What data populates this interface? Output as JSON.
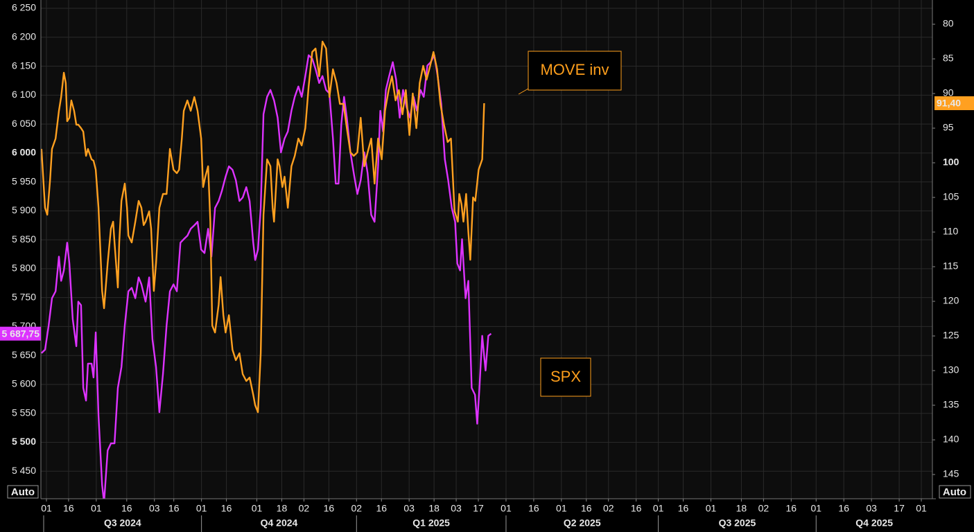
{
  "chart_data": {
    "type": "line",
    "xlim": [
      -1,
      321
    ],
    "xticks": [
      {
        "value": 1,
        "label": "01"
      },
      {
        "value": 9,
        "label": "16"
      },
      {
        "value": 19,
        "label": "01"
      },
      {
        "value": 30,
        "label": "16"
      },
      {
        "value": 40,
        "label": "03"
      },
      {
        "value": 47,
        "label": "16"
      },
      {
        "value": 57,
        "label": "01"
      },
      {
        "value": 66,
        "label": "16"
      },
      {
        "value": 77,
        "label": "01"
      },
      {
        "value": 86,
        "label": "18"
      },
      {
        "value": 94,
        "label": "02"
      },
      {
        "value": 103,
        "label": "16"
      },
      {
        "value": 113,
        "label": "02"
      },
      {
        "value": 122,
        "label": "16"
      },
      {
        "value": 132,
        "label": "03"
      },
      {
        "value": 141,
        "label": "18"
      },
      {
        "value": 149,
        "label": "03"
      },
      {
        "value": 157,
        "label": "17"
      },
      {
        "value": 167,
        "label": "01"
      },
      {
        "value": 177,
        "label": "16"
      },
      {
        "value": 187,
        "label": "01"
      },
      {
        "value": 196,
        "label": "16"
      },
      {
        "value": 204,
        "label": "02"
      },
      {
        "value": 214,
        "label": "16"
      },
      {
        "value": 222,
        "label": "01"
      },
      {
        "value": 231,
        "label": "16"
      },
      {
        "value": 241,
        "label": "01"
      },
      {
        "value": 252,
        "label": "18"
      },
      {
        "value": 260,
        "label": "02"
      },
      {
        "value": 270,
        "label": "16"
      },
      {
        "value": 279,
        "label": "01"
      },
      {
        "value": 289,
        "label": "16"
      },
      {
        "value": 299,
        "label": "03"
      },
      {
        "value": 309,
        "label": "17"
      },
      {
        "value": 317,
        "label": "01"
      }
    ],
    "quarters": [
      {
        "label": "Q3 2024",
        "start": 0
      },
      {
        "label": "Q4 2024",
        "start": 57
      },
      {
        "label": "Q1 2025",
        "start": 113
      },
      {
        "label": "Q2 2025",
        "start": 167
      },
      {
        "label": "Q3 2025",
        "start": 222
      },
      {
        "label": "Q4 2025",
        "start": 279
      }
    ],
    "ylim": [
      5402.4,
      6264.4
    ],
    "yticks": [
      {
        "value": 6250,
        "label": "6 250"
      },
      {
        "value": 6200,
        "label": "6 200"
      },
      {
        "value": 6150,
        "label": "6 150"
      },
      {
        "value": 6100,
        "label": "6 100"
      },
      {
        "value": 6050,
        "label": "6 050"
      },
      {
        "value": 6000,
        "label": "6 000",
        "bold": true
      },
      {
        "value": 5950,
        "label": "5 950"
      },
      {
        "value": 5900,
        "label": "5 900"
      },
      {
        "value": 5850,
        "label": "5 850"
      },
      {
        "value": 5800,
        "label": "5 800"
      },
      {
        "value": 5750,
        "label": "5 750"
      },
      {
        "value": 5700,
        "label": "5 700"
      },
      {
        "value": 5650,
        "label": "5 650"
      },
      {
        "value": 5600,
        "label": "5 600"
      },
      {
        "value": 5550,
        "label": "5 550"
      },
      {
        "value": 5500,
        "label": "5 500",
        "bold": true
      },
      {
        "value": 5450,
        "label": "5 450"
      }
    ],
    "y2lim": [
      76.5,
      148.5
    ],
    "y2_inverted": true,
    "y2ticks": [
      80,
      85,
      90,
      95,
      {
        "value": 100,
        "label": "100",
        "bold": true
      },
      105,
      110,
      115,
      120,
      125,
      130,
      135,
      140,
      145
    ],
    "grid": true,
    "series": [
      {
        "name": "SPX",
        "color": "#dd33ff",
        "axis": "y",
        "last_value_label": {
          "value": 5687.75,
          "label": "5 687,75"
        },
        "x": [
          -0.8,
          0.5,
          1.8,
          3.0,
          4.3,
          5.5,
          6.3,
          7.3,
          8.5,
          9.3,
          10.5,
          11.8,
          12.5,
          13.5,
          14.3,
          15.3,
          16.0,
          17.3,
          18.0,
          18.8,
          19.8,
          21.1,
          21.8,
          23.1,
          24.3,
          25.6,
          26.8,
          28.1,
          29.3,
          30.6,
          31.8,
          33.1,
          34.3,
          35.3,
          36.8,
          38.1,
          39.3,
          40.6,
          41.8,
          43.1,
          44.4,
          45.6,
          46.9,
          48.1,
          49.4,
          50.6,
          51.9,
          53.1,
          54.4,
          55.6,
          56.9,
          58.1,
          59.4,
          60.6,
          61.9,
          63.2,
          64.4,
          65.7,
          66.9,
          68.2,
          69.4,
          70.7,
          71.9,
          73.2,
          74.4,
          75.7,
          76.4,
          77.4,
          78.4,
          79.4,
          80.7,
          81.9,
          83.2,
          84.5,
          85.7,
          87.0,
          88.2,
          89.5,
          90.7,
          92.0,
          93.2,
          94.5,
          95.7,
          97.0,
          98.2,
          99.5,
          100.7,
          102.0,
          103.2,
          104.5,
          105.5,
          106.5,
          107.5,
          108.5,
          109.5,
          110.8,
          112.0,
          113.3,
          114.5,
          115.8,
          117.0,
          118.3,
          119.5,
          120.8,
          121.6,
          122.6,
          123.6,
          124.8,
          126.1,
          127.3,
          128.6,
          129.8,
          131.1,
          132.3,
          133.6,
          134.8,
          136.1,
          137.3,
          138.6,
          139.8,
          141.1,
          142.3,
          143.6,
          144.9,
          146.1,
          147.4,
          148.6,
          149.4,
          150.4,
          151.1,
          152.4,
          153.4,
          154.6,
          155.8,
          156.6,
          157.4,
          158.4,
          159.6,
          160.6,
          161.6
        ],
        "values": [
          5654,
          5660,
          5702,
          5749,
          5761,
          5821,
          5779,
          5797,
          5845,
          5809,
          5713,
          5666,
          5743,
          5737,
          5594,
          5572,
          5636,
          5636,
          5612,
          5690,
          5546,
          5426,
          5396,
          5486,
          5498,
          5498,
          5594,
          5630,
          5702,
          5761,
          5767,
          5749,
          5785,
          5773,
          5743,
          5785,
          5678,
          5630,
          5552,
          5618,
          5702,
          5761,
          5773,
          5761,
          5845,
          5851,
          5857,
          5869,
          5875,
          5881,
          5833,
          5827,
          5869,
          5821,
          5905,
          5917,
          5935,
          5959,
          5977,
          5971,
          5953,
          5917,
          5923,
          5941,
          5917,
          5845,
          5815,
          5833,
          5905,
          6067,
          6097,
          6109,
          6091,
          6061,
          6001,
          6025,
          6037,
          6073,
          6097,
          6115,
          6097,
          6133,
          6169,
          6163,
          6145,
          6121,
          6133,
          6109,
          6103,
          6025,
          5947,
          5947,
          6049,
          6097,
          6061,
          6001,
          5965,
          5929,
          5953,
          6001,
          5965,
          5893,
          5881,
          5977,
          6073,
          6037,
          6109,
          6133,
          6157,
          6127,
          6061,
          6109,
          6079,
          6061,
          6097,
          6073,
          6109,
          6097,
          6151,
          6157,
          6169,
          6133,
          6085,
          5989,
          5953,
          5905,
          5881,
          5809,
          5797,
          5851,
          5749,
          5779,
          5594,
          5582,
          5532,
          5594,
          5684,
          5624,
          5684,
          5687.75
        ]
      },
      {
        "name": "MOVE inv",
        "color": "#ffa020",
        "axis": "y2",
        "last_value_label": {
          "value": 91.4,
          "label": "91,40"
        },
        "x": [
          -0.8,
          0.5,
          1.3,
          2.3,
          3.0,
          4.3,
          5.5,
          6.3,
          7.3,
          8.0,
          8.5,
          9.3,
          10.0,
          11.0,
          11.8,
          12.5,
          13.5,
          14.3,
          15.3,
          16.0,
          17.3,
          18.0,
          18.8,
          19.8,
          21.1,
          21.8,
          23.1,
          24.3,
          25.1,
          25.6,
          26.8,
          27.3,
          28.1,
          29.3,
          30.1,
          30.6,
          31.8,
          33.1,
          34.3,
          35.3,
          36.1,
          36.8,
          38.1,
          38.8,
          39.8,
          40.6,
          41.8,
          43.1,
          44.4,
          45.6,
          46.9,
          48.1,
          48.9,
          49.9,
          50.6,
          51.9,
          53.1,
          54.4,
          55.6,
          56.9,
          57.6,
          58.4,
          59.4,
          60.2,
          60.9,
          61.9,
          63.2,
          63.9,
          64.9,
          65.7,
          66.9,
          68.2,
          69.4,
          70.7,
          71.9,
          73.2,
          74.4,
          75.7,
          76.4,
          77.4,
          78.4,
          79.4,
          80.7,
          81.9,
          82.7,
          83.2,
          84.5,
          85.2,
          86.2,
          87.0,
          88.2,
          89.5,
          90.7,
          92.0,
          93.2,
          94.5,
          95.7,
          97.0,
          98.2,
          99.5,
          100.7,
          102.0,
          103.2,
          104.5,
          105.8,
          107.0,
          108.3,
          109.5,
          110.8,
          112.0,
          113.3,
          114.5,
          115.8,
          117.0,
          118.3,
          119.5,
          120.8,
          122.1,
          123.3,
          124.6,
          125.8,
          127.1,
          128.3,
          129.6,
          130.8,
          132.1,
          133.3,
          134.6,
          135.8,
          137.1,
          138.3,
          139.6,
          140.8,
          142.1,
          143.3,
          144.6,
          145.9,
          147.1,
          148.4,
          149.6,
          150.1,
          150.9,
          151.6,
          152.6,
          153.4,
          154.1,
          155.1,
          155.9,
          157.1,
          158.4,
          159.1
        ],
        "values": [
          98.0,
          106.5,
          107.5,
          102.5,
          98.0,
          96.5,
          92.5,
          90.5,
          87.0,
          88.5,
          94.0,
          93.5,
          91.0,
          92.5,
          94.5,
          94.5,
          95.0,
          95.5,
          99.0,
          98.0,
          99.5,
          99.7,
          101.0,
          106.5,
          118.5,
          121.0,
          114.5,
          109.5,
          108.5,
          111.5,
          118.0,
          111.5,
          105.5,
          103.0,
          106.5,
          110.5,
          111.5,
          108.5,
          105.5,
          106.5,
          109.0,
          108.5,
          107.0,
          109.5,
          118.5,
          114.5,
          106.5,
          104.5,
          104.5,
          98.0,
          101.0,
          101.5,
          101.0,
          96.5,
          92.5,
          91.0,
          92.5,
          90.5,
          92.5,
          96.5,
          103.5,
          102.0,
          100.5,
          108.5,
          123.5,
          124.5,
          120.5,
          116.5,
          122.0,
          124.5,
          122.0,
          127.0,
          128.5,
          127.5,
          130.5,
          131.5,
          131.0,
          133.5,
          135.0,
          136.0,
          127.5,
          107.5,
          99.5,
          100.5,
          106.5,
          108.5,
          99.5,
          100.5,
          103.5,
          102.0,
          106.5,
          100.5,
          99.0,
          96.5,
          97.5,
          95.0,
          89.0,
          84.0,
          83.5,
          87.5,
          82.5,
          83.5,
          90.5,
          86.5,
          88.5,
          91.5,
          91.5,
          95.0,
          98.5,
          99.0,
          98.5,
          93.5,
          100.5,
          98.5,
          96.5,
          103.0,
          96.5,
          99.5,
          92.5,
          89.5,
          87.5,
          91.0,
          89.5,
          93.0,
          89.5,
          96.0,
          90.0,
          95.0,
          88.5,
          86.0,
          88.0,
          86.0,
          84.0,
          86.5,
          91.5,
          94.5,
          97.0,
          96.5,
          107.0,
          108.5,
          104.5,
          106.0,
          108.5,
          104.5,
          110.0,
          114.0,
          105.0,
          105.5,
          101.0,
          99.5,
          91.4
        ]
      }
    ],
    "annotations": [
      "MOVE inv",
      "SPX"
    ],
    "controls": {
      "left": "Auto",
      "right": "Auto"
    }
  }
}
